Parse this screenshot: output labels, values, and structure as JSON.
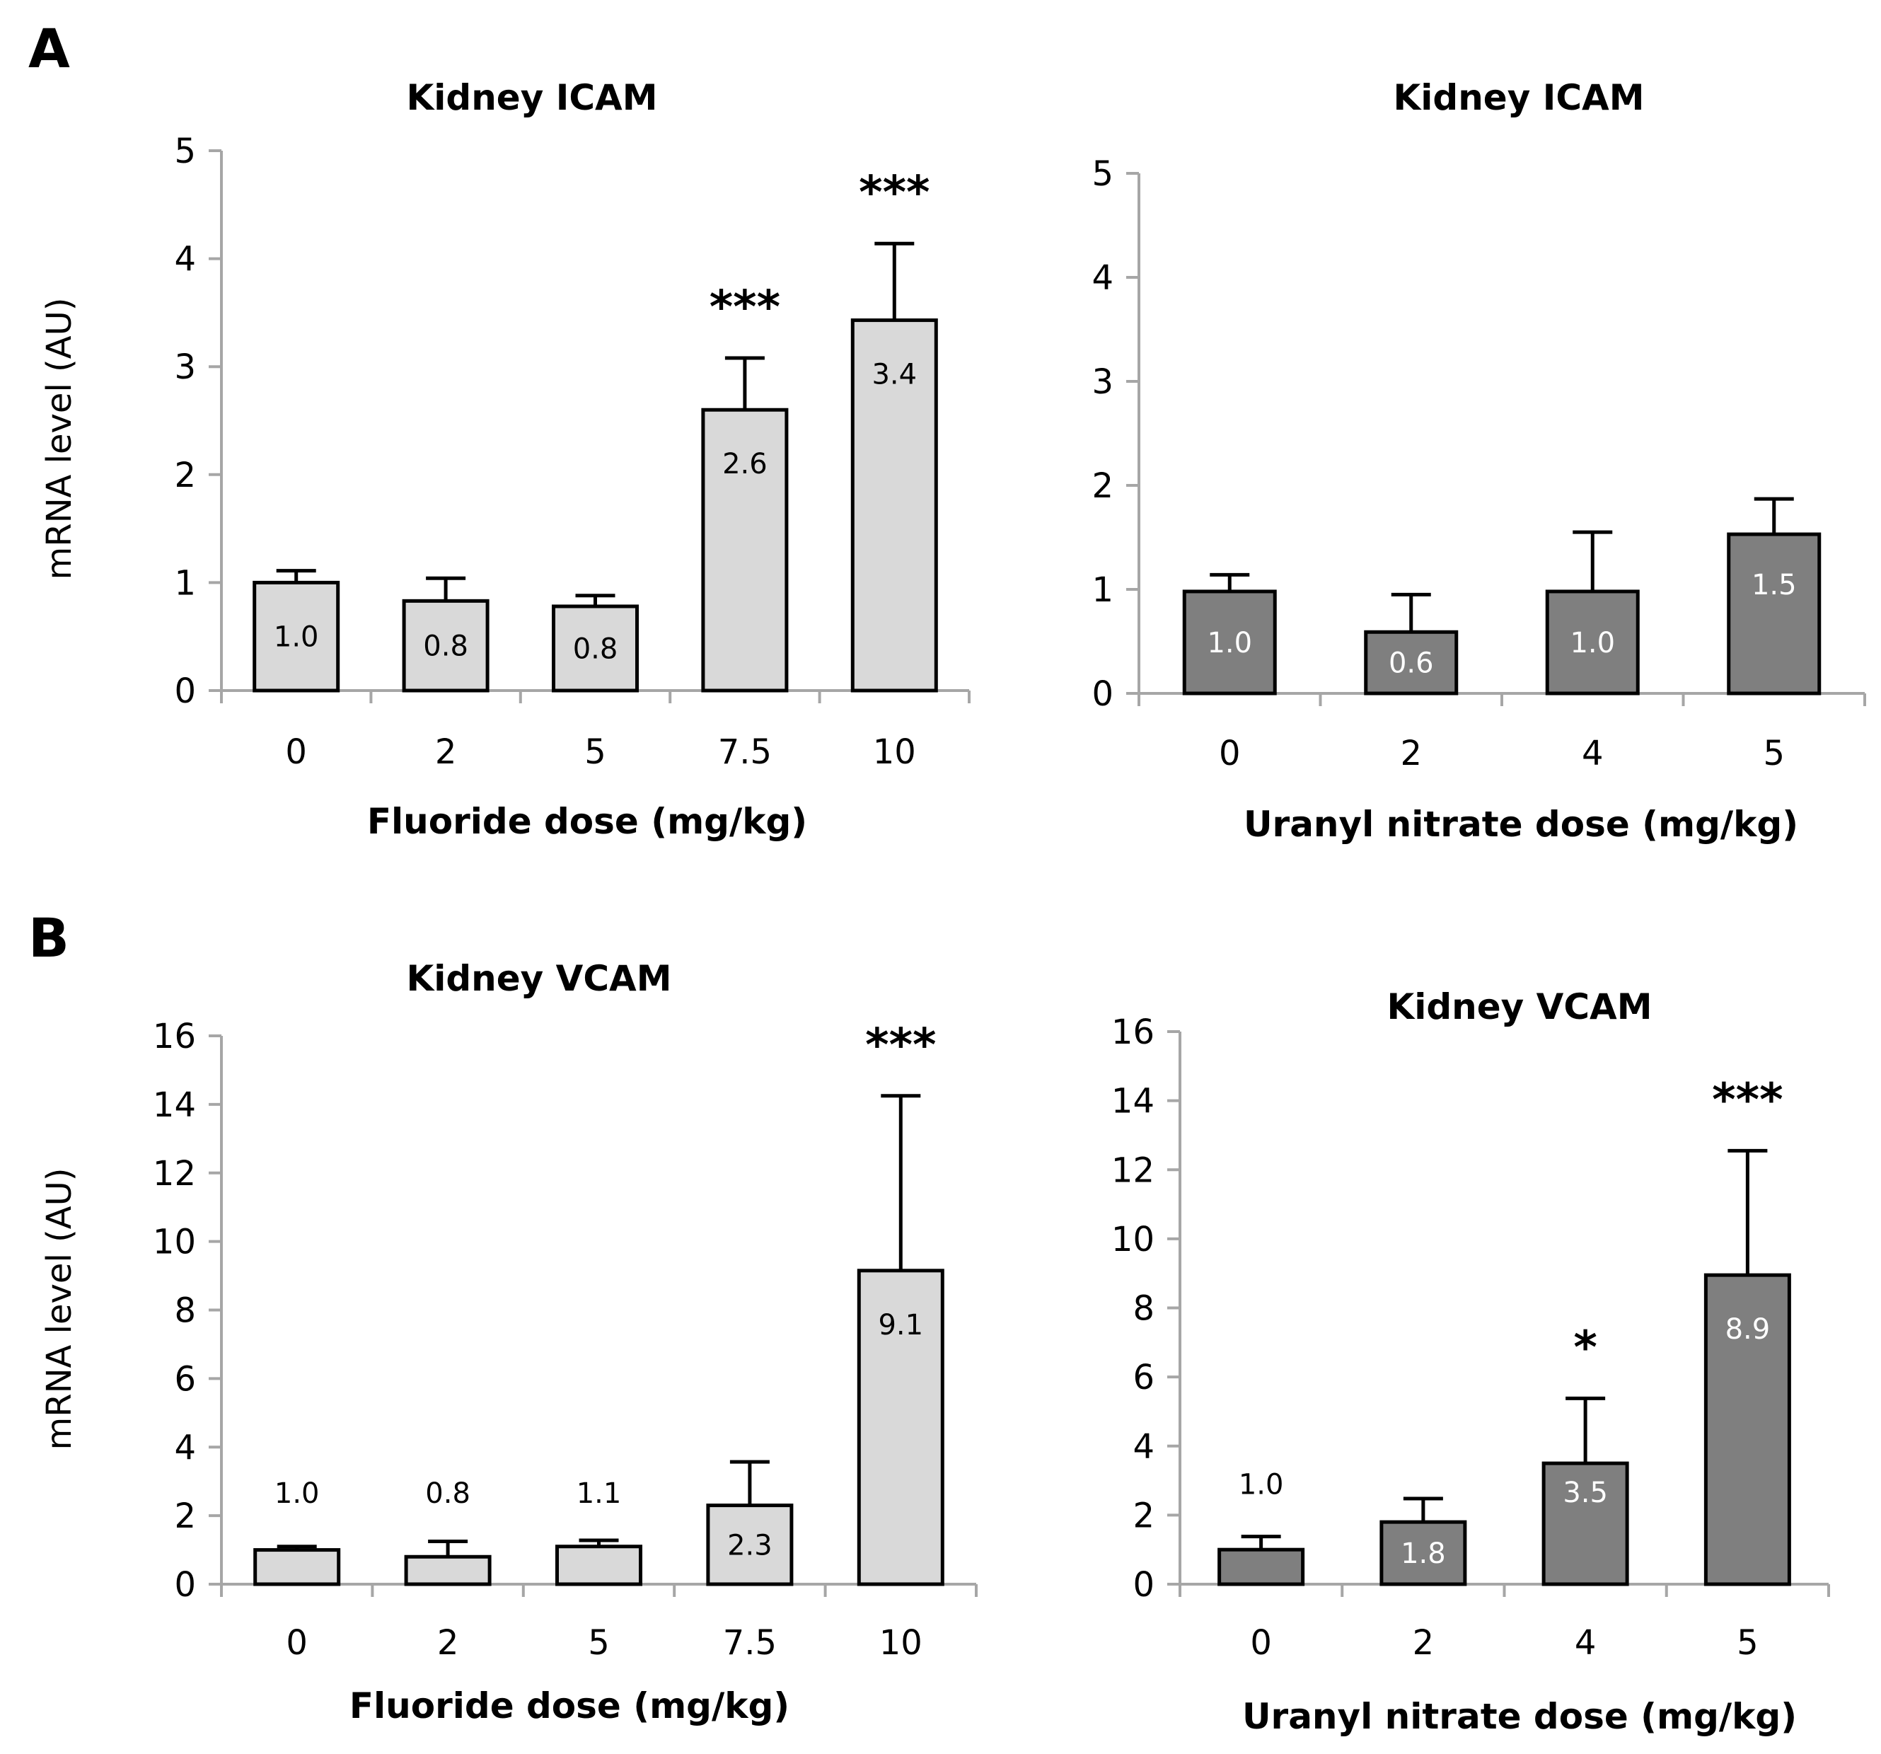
{
  "figure": {
    "panel_labels": [
      "A",
      "B"
    ]
  },
  "chart_data": [
    {
      "id": "a-left",
      "type": "bar",
      "title": "Kidney ICAM",
      "xlabel": "Fluoride dose (mg/kg)",
      "ylabel": "mRNA level (AU)",
      "ylim": [
        0,
        5
      ],
      "yticks": [
        0,
        1,
        2,
        3,
        4,
        5
      ],
      "categories": [
        "0",
        "2",
        "5",
        "7.5",
        "10"
      ],
      "values": [
        1.0,
        0.83,
        0.78,
        2.6,
        3.43
      ],
      "errors": [
        0.11,
        0.21,
        0.1,
        0.48,
        0.71
      ],
      "data_labels": [
        "1.0",
        "0.8",
        "0.8",
        "2.6",
        "3.4"
      ],
      "significance": [
        "",
        "",
        "",
        "***",
        "***"
      ],
      "bar_color": "#d9d9d9",
      "label_color": "#000000",
      "grid": false
    },
    {
      "id": "a-right",
      "type": "bar",
      "title": "Kidney ICAM",
      "xlabel": "Uranyl nitrate dose (mg/kg)",
      "ylabel": "",
      "ylim": [
        0,
        5
      ],
      "yticks": [
        0,
        1,
        2,
        3,
        4,
        5
      ],
      "categories": [
        "0",
        "2",
        "4",
        "5"
      ],
      "values": [
        0.98,
        0.59,
        0.98,
        1.53
      ],
      "errors": [
        0.16,
        0.36,
        0.57,
        0.34
      ],
      "data_labels": [
        "1.0",
        "0.6",
        "1.0",
        "1.5"
      ],
      "significance": [
        "",
        "",
        "",
        ""
      ],
      "bar_color": "#7f7f7f",
      "label_color": "#ffffff",
      "grid": false
    },
    {
      "id": "b-left",
      "type": "bar",
      "title": "Kidney VCAM",
      "xlabel": "Fluoride dose (mg/kg)",
      "ylabel": "mRNA level (AU)",
      "ylim": [
        0,
        16
      ],
      "yticks": [
        0,
        2,
        4,
        6,
        8,
        10,
        12,
        14,
        16
      ],
      "categories": [
        "0",
        "2",
        "5",
        "7.5",
        "10"
      ],
      "values": [
        1.0,
        0.8,
        1.1,
        2.3,
        9.15
      ],
      "errors": [
        0.1,
        0.45,
        0.18,
        1.27,
        5.1
      ],
      "data_labels": [
        "1.0",
        "0.8",
        "1.1",
        "2.3",
        "9.1"
      ],
      "label_positions": [
        "above",
        "above",
        "above",
        "inside",
        "inside"
      ],
      "significance": [
        "",
        "",
        "",
        "",
        "***"
      ],
      "bar_color": "#d9d9d9",
      "label_color": "#000000",
      "grid": false
    },
    {
      "id": "b-right",
      "type": "bar",
      "title": "Kidney VCAM",
      "xlabel": "Uranyl nitrate dose (mg/kg)",
      "ylabel": "",
      "ylim": [
        0,
        16
      ],
      "yticks": [
        0,
        2,
        4,
        6,
        8,
        10,
        12,
        14,
        16
      ],
      "categories": [
        "0",
        "2",
        "4",
        "5"
      ],
      "values": [
        1.0,
        1.8,
        3.5,
        8.95
      ],
      "errors": [
        0.38,
        0.68,
        1.88,
        3.6
      ],
      "data_labels": [
        "1.0",
        "1.8",
        "3.5",
        "8.9"
      ],
      "label_positions": [
        "above",
        "inside",
        "inside",
        "inside"
      ],
      "significance": [
        "",
        "",
        "*",
        "***"
      ],
      "bar_color": "#7f7f7f",
      "label_color": "#ffffff",
      "grid": false
    }
  ]
}
